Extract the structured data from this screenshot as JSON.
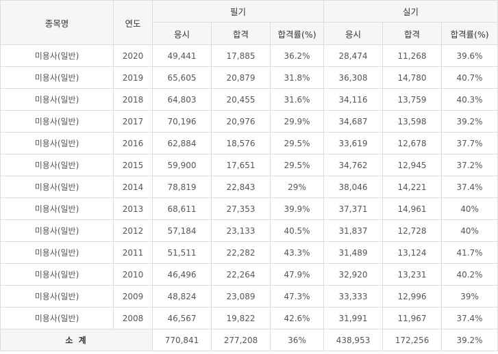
{
  "headers": {
    "item": "종목명",
    "year": "연도",
    "written": "필기",
    "practical": "실기",
    "applicants": "응시",
    "passed": "합격",
    "pass_rate": "합격률(%)"
  },
  "rows": [
    {
      "item": "미용사(일반)",
      "year": "2020",
      "w_app": "49,441",
      "w_pass": "17,885",
      "w_rate": "36.2%",
      "p_app": "28,474",
      "p_pass": "11,268",
      "p_rate": "39.6%"
    },
    {
      "item": "미용사(일반)",
      "year": "2019",
      "w_app": "65,605",
      "w_pass": "20,879",
      "w_rate": "31.8%",
      "p_app": "36,308",
      "p_pass": "14,780",
      "p_rate": "40.7%"
    },
    {
      "item": "미용사(일반)",
      "year": "2018",
      "w_app": "64,803",
      "w_pass": "20,455",
      "w_rate": "31.6%",
      "p_app": "34,116",
      "p_pass": "13,759",
      "p_rate": "40.3%"
    },
    {
      "item": "미용사(일반)",
      "year": "2017",
      "w_app": "70,196",
      "w_pass": "20,976",
      "w_rate": "29.9%",
      "p_app": "34,687",
      "p_pass": "13,598",
      "p_rate": "39.2%"
    },
    {
      "item": "미용사(일반)",
      "year": "2016",
      "w_app": "62,884",
      "w_pass": "18,576",
      "w_rate": "29.5%",
      "p_app": "33,619",
      "p_pass": "12,678",
      "p_rate": "37.7%"
    },
    {
      "item": "미용사(일반)",
      "year": "2015",
      "w_app": "59,900",
      "w_pass": "17,651",
      "w_rate": "29.5%",
      "p_app": "34,762",
      "p_pass": "12,945",
      "p_rate": "37.2%"
    },
    {
      "item": "미용사(일반)",
      "year": "2014",
      "w_app": "78,819",
      "w_pass": "22,843",
      "w_rate": "29%",
      "p_app": "38,046",
      "p_pass": "14,221",
      "p_rate": "37.4%"
    },
    {
      "item": "미용사(일반)",
      "year": "2013",
      "w_app": "68,611",
      "w_pass": "27,353",
      "w_rate": "39.9%",
      "p_app": "37,371",
      "p_pass": "14,961",
      "p_rate": "40%"
    },
    {
      "item": "미용사(일반)",
      "year": "2012",
      "w_app": "57,184",
      "w_pass": "23,133",
      "w_rate": "40.5%",
      "p_app": "31,837",
      "p_pass": "12,728",
      "p_rate": "40%"
    },
    {
      "item": "미용사(일반)",
      "year": "2011",
      "w_app": "51,511",
      "w_pass": "22,282",
      "w_rate": "43.3%",
      "p_app": "31,489",
      "p_pass": "13,124",
      "p_rate": "41.7%"
    },
    {
      "item": "미용사(일반)",
      "year": "2010",
      "w_app": "46,496",
      "w_pass": "22,264",
      "w_rate": "47.9%",
      "p_app": "32,920",
      "p_pass": "13,231",
      "p_rate": "40.2%"
    },
    {
      "item": "미용사(일반)",
      "year": "2009",
      "w_app": "48,824",
      "w_pass": "23,089",
      "w_rate": "47.3%",
      "p_app": "33,333",
      "p_pass": "12,996",
      "p_rate": "39%"
    },
    {
      "item": "미용사(일반)",
      "year": "2008",
      "w_app": "46,567",
      "w_pass": "19,822",
      "w_rate": "42.6%",
      "p_app": "31,991",
      "p_pass": "11,967",
      "p_rate": "37.4%"
    }
  ],
  "total": {
    "label": "소 계",
    "w_app": "770,841",
    "w_pass": "277,208",
    "w_rate": "36%",
    "p_app": "438,953",
    "p_pass": "172,256",
    "p_rate": "39.2%"
  }
}
